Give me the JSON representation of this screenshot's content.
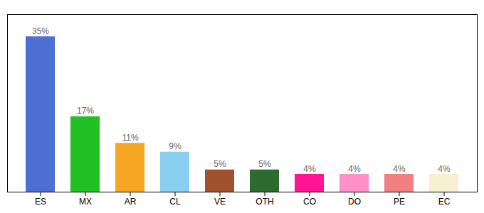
{
  "chart_data": {
    "type": "bar",
    "categories": [
      "ES",
      "MX",
      "AR",
      "CL",
      "VE",
      "OTH",
      "CO",
      "DO",
      "PE",
      "EC"
    ],
    "values": [
      35,
      17,
      11,
      9,
      5,
      5,
      4,
      4,
      4,
      4
    ],
    "value_labels": [
      "35%",
      "17%",
      "11%",
      "9%",
      "5%",
      "5%",
      "4%",
      "4%",
      "4%",
      "4%"
    ],
    "colors": [
      "#4d6fd4",
      "#22c024",
      "#f5a623",
      "#87ceef",
      "#a0522d",
      "#2d6a2d",
      "#ff1493",
      "#ff91c8",
      "#f08080",
      "#f5f0d0"
    ],
    "ylim": [
      0,
      40
    ],
    "data_labels": true,
    "grid": false,
    "tick_labels": "x"
  }
}
